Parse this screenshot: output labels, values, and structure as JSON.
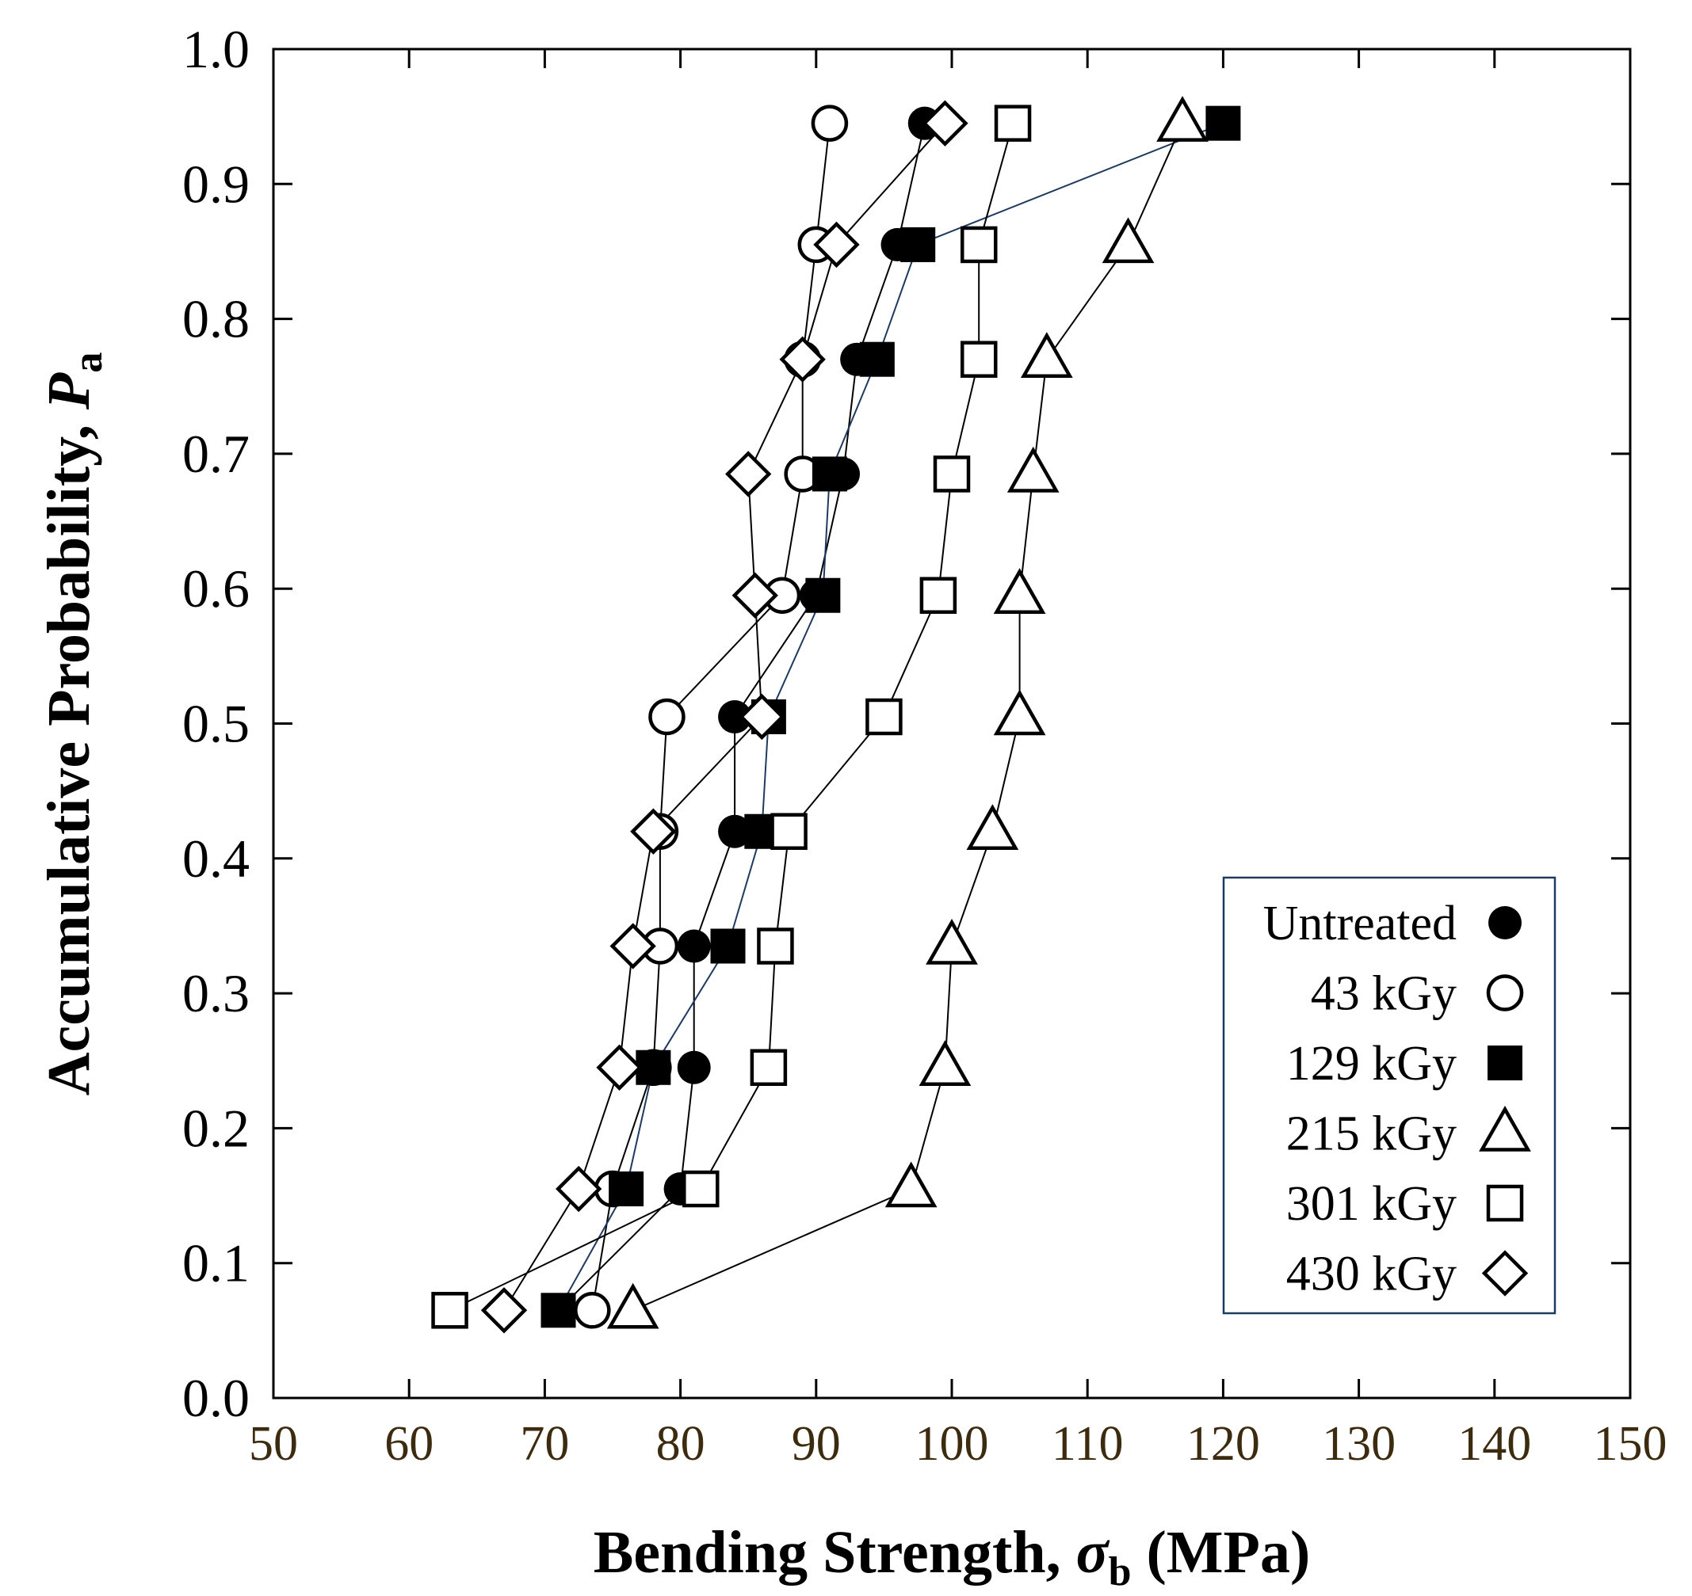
{
  "chart_data": {
    "type": "scatter",
    "xlabel": "Bending Strength, ",
    "xlabel_symbol": "σ",
    "xlabel_sub": "b",
    "xlabel_unit": " (MPa)",
    "ylabel": "Accumulative Probability, ",
    "ylabel_symbol": "P",
    "ylabel_sub": "a",
    "xlim": [
      50,
      150
    ],
    "ylim": [
      0.0,
      1.0
    ],
    "x_ticks": [
      "50",
      "60",
      "70",
      "80",
      "90",
      "100",
      "110",
      "120",
      "130",
      "140",
      "150"
    ],
    "y_ticks": [
      "0.0",
      "0.1",
      "0.2",
      "0.3",
      "0.4",
      "0.5",
      "0.6",
      "0.7",
      "0.8",
      "0.9",
      "1.0"
    ],
    "legend_position": "bottom-right",
    "p": [
      0.065,
      0.155,
      0.245,
      0.335,
      0.42,
      0.505,
      0.595,
      0.685,
      0.77,
      0.855,
      0.945
    ],
    "series": [
      {
        "name": "Untreated",
        "marker": "filled-circle",
        "line_color": "#000000",
        "values": [
          71.0,
          80.0,
          81.0,
          81.0,
          84.0,
          84.0,
          90.0,
          92.0,
          93.0,
          96.0,
          98.0
        ]
      },
      {
        "name": "43 kGy",
        "marker": "open-circle",
        "line_color": "#000000",
        "values": [
          73.5,
          75.0,
          78.0,
          78.5,
          78.5,
          79.0,
          87.5,
          89.0,
          89.0,
          90.0,
          91.0
        ]
      },
      {
        "name": "129 kGy",
        "marker": "filled-square",
        "line_color": "#1f3a5f",
        "values": [
          71.0,
          76.0,
          78.0,
          83.5,
          86.0,
          86.5,
          90.5,
          91.0,
          94.5,
          97.5,
          120.0
        ]
      },
      {
        "name": "215 kGy",
        "marker": "open-triangle",
        "line_color": "#000000",
        "values": [
          76.5,
          97.0,
          99.5,
          100.0,
          103.0,
          105.0,
          105.0,
          106.0,
          107.0,
          113.0,
          117.0
        ]
      },
      {
        "name": "301 kGy",
        "marker": "open-square",
        "line_color": "#000000",
        "values": [
          63.0,
          81.5,
          86.5,
          87.0,
          88.0,
          95.0,
          99.0,
          100.0,
          102.0,
          102.0,
          104.5
        ]
      },
      {
        "name": "430 kGy",
        "marker": "open-diamond",
        "line_color": "#000000",
        "values": [
          67.0,
          72.5,
          75.5,
          76.5,
          78.0,
          86.0,
          85.5,
          85.0,
          89.0,
          91.5,
          99.5
        ]
      }
    ]
  }
}
